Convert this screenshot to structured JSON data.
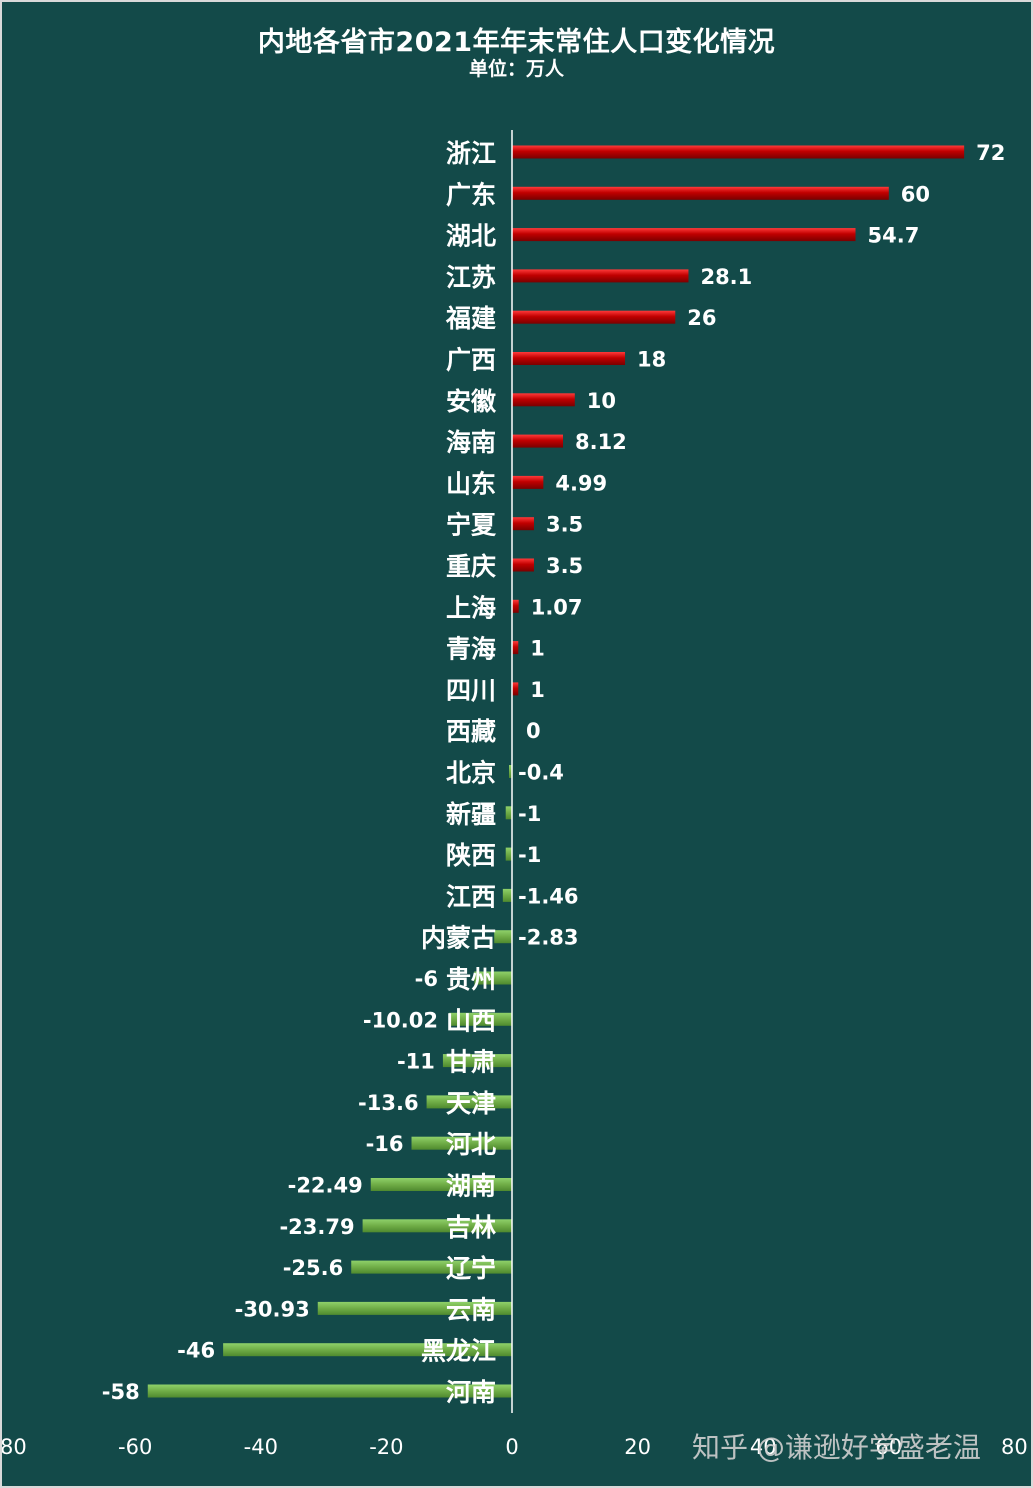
{
  "chart_data": {
    "type": "bar",
    "orientation": "horizontal",
    "title": "内地各省市2021年年末常住人口变化情况",
    "subtitle": "单位：万人",
    "xlim": [
      -80,
      80
    ],
    "xticks": [
      -80,
      -60,
      -40,
      -20,
      0,
      20,
      40,
      60,
      80
    ],
    "grid": false,
    "colors": {
      "positive": "#c00000",
      "negative": "#70ad47",
      "background": "#134a49",
      "axis": "#ffffff",
      "text": "#ffffff"
    },
    "categories": [
      "浙江",
      "广东",
      "湖北",
      "江苏",
      "福建",
      "广西",
      "安徽",
      "海南",
      "山东",
      "宁夏",
      "重庆",
      "上海",
      "青海",
      "四川",
      "西藏",
      "北京",
      "新疆",
      "陕西",
      "江西",
      "内蒙古",
      "贵州",
      "山西",
      "甘肃",
      "天津",
      "河北",
      "湖南",
      "吉林",
      "辽宁",
      "云南",
      "黑龙江",
      "河南"
    ],
    "values": [
      72,
      60,
      54.7,
      28.1,
      26,
      18,
      10,
      8.12,
      4.99,
      3.5,
      3.5,
      1.07,
      1,
      1,
      0,
      -0.4,
      -1,
      -1,
      -1.46,
      -2.83,
      -6,
      -10.02,
      -11,
      -13.6,
      -16,
      -22.49,
      -23.79,
      -25.6,
      -30.93,
      -46,
      -58
    ],
    "data_labels": [
      "72",
      "60",
      "54.7",
      "28.1",
      "26",
      "18",
      "10",
      "8.12",
      "4.99",
      "3.5",
      "3.5",
      "1.07",
      "1",
      "1",
      "0",
      "-0.4",
      "-1",
      "-1",
      "-1.46",
      "-2.83",
      "-6",
      "-10.02",
      "-11",
      "-13.6",
      "-16",
      "-22.49",
      "-23.79",
      "-25.6",
      "-30.93",
      "-46",
      "-58"
    ]
  },
  "watermark": "知乎 @谦逊好学盛老温"
}
